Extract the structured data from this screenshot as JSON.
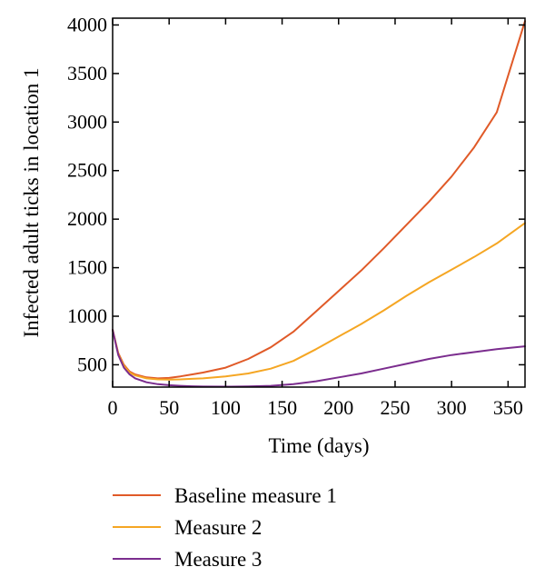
{
  "chart_data": {
    "type": "line",
    "xlabel": "Time (days)",
    "ylabel": "Infected adult ticks in location 1",
    "xlim": [
      0,
      365
    ],
    "ylim": [
      270,
      4070
    ],
    "xticks": [
      0,
      50,
      100,
      150,
      200,
      250,
      300,
      350
    ],
    "yticks": [
      500,
      1000,
      1500,
      2000,
      2500,
      3000,
      3500,
      4000
    ],
    "grid": false,
    "legend_position": "bottom",
    "series": [
      {
        "name": "Baseline measure 1",
        "color": "#e05a28",
        "x": [
          0,
          5,
          10,
          15,
          20,
          30,
          40,
          50,
          60,
          70,
          80,
          100,
          120,
          140,
          160,
          180,
          200,
          220,
          240,
          260,
          280,
          300,
          320,
          340,
          365
        ],
        "y": [
          860,
          620,
          500,
          430,
          400,
          370,
          360,
          365,
          380,
          400,
          420,
          470,
          560,
          680,
          840,
          1050,
          1260,
          1470,
          1700,
          1940,
          2180,
          2440,
          2740,
          3100,
          4040
        ]
      },
      {
        "name": "Measure 2",
        "color": "#f5a623",
        "x": [
          0,
          5,
          10,
          15,
          20,
          30,
          40,
          50,
          60,
          70,
          80,
          100,
          120,
          140,
          160,
          180,
          200,
          220,
          240,
          260,
          280,
          300,
          320,
          340,
          365
        ],
        "y": [
          860,
          610,
          490,
          420,
          390,
          360,
          350,
          348,
          350,
          355,
          360,
          380,
          410,
          460,
          540,
          660,
          790,
          920,
          1060,
          1210,
          1350,
          1480,
          1610,
          1750,
          1960
        ]
      },
      {
        "name": "Measure 3",
        "color": "#7b2d8e",
        "x": [
          0,
          5,
          10,
          15,
          20,
          30,
          40,
          50,
          60,
          70,
          80,
          100,
          120,
          140,
          160,
          180,
          200,
          220,
          240,
          260,
          280,
          300,
          320,
          340,
          365
        ],
        "y": [
          860,
          600,
          470,
          400,
          360,
          320,
          300,
          290,
          283,
          278,
          276,
          275,
          277,
          283,
          300,
          330,
          370,
          410,
          460,
          510,
          560,
          600,
          630,
          660,
          690
        ]
      }
    ]
  }
}
